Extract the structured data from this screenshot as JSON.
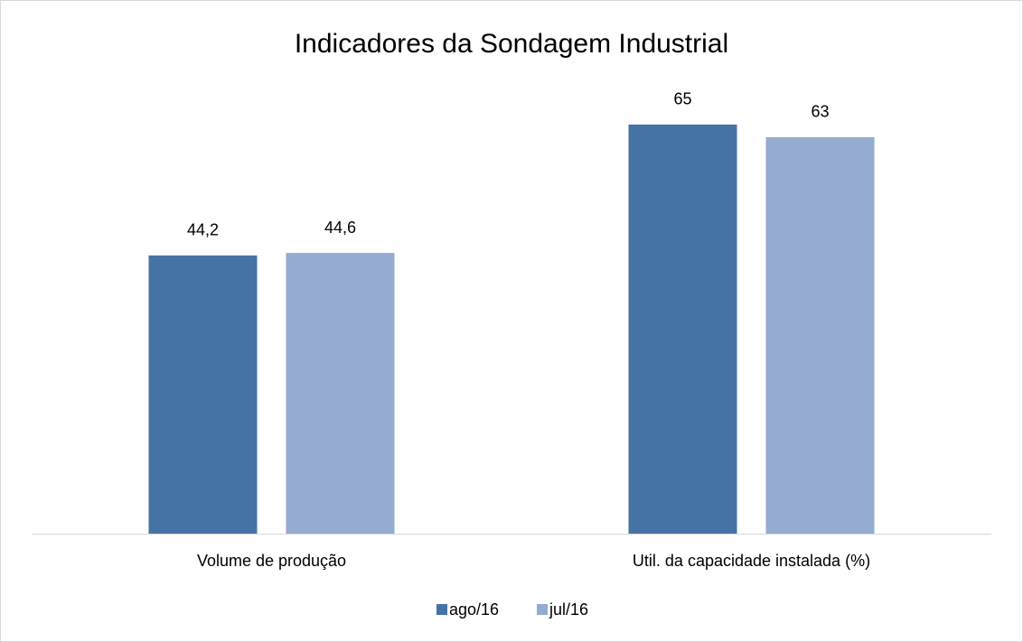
{
  "chart_data": {
    "type": "bar",
    "title": "Indicadores da Sondagem Industrial",
    "categories": [
      "Volume de produção",
      "Util. da capacidade instalada (%)"
    ],
    "series": [
      {
        "name": "ago/16",
        "color": "#4673a6",
        "values": [
          44.2,
          65
        ],
        "value_labels": [
          "44,2",
          "65"
        ]
      },
      {
        "name": "jul/16",
        "color": "#95abd2",
        "values": [
          44.6,
          63
        ],
        "value_labels": [
          "44,6",
          "63"
        ]
      }
    ],
    "legend": "bottom"
  }
}
